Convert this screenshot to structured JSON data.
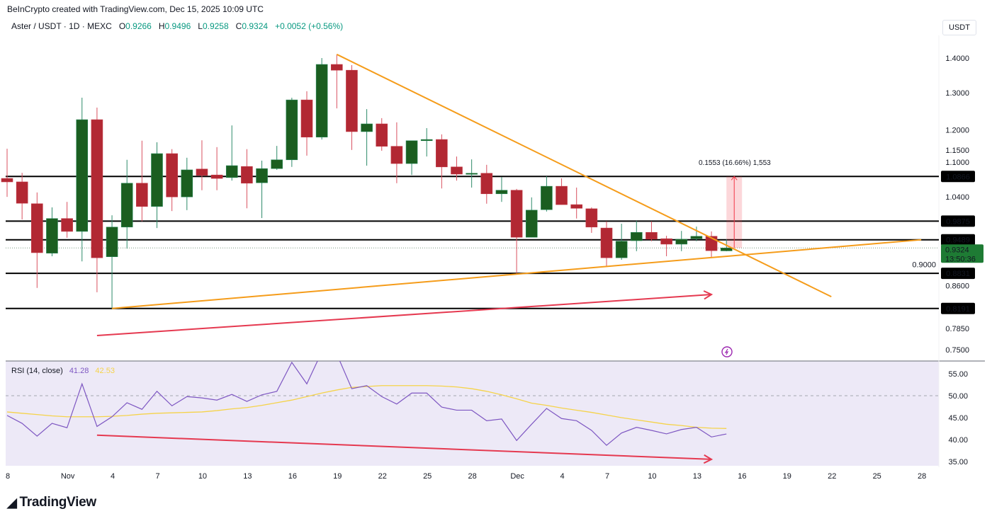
{
  "header": {
    "credit": "BeInCrypto created with TradingView.com, Dec 15, 2025 10:09 UTC",
    "symbol": "Aster / USDT · 1D · MEXC",
    "o_label": "O",
    "o": "0.9266",
    "h_label": "H",
    "h": "0.9496",
    "l_label": "L",
    "l": "0.9258",
    "c_label": "C",
    "c": "0.9324",
    "change": "+0.0052 (+0.56%)",
    "currency": "USDT"
  },
  "colors": {
    "up": "#1b5e20",
    "down": "#b22833",
    "up_wick": "#2e8b6a",
    "down_wick": "#d9505f",
    "trendline": "#f59c1a",
    "arrow": "#e53950",
    "rsi": "#7e57c2",
    "rsi_ma": "#f5d34a",
    "level": "#000000",
    "last_price": "#1e7b34"
  },
  "logo": {
    "text": "TradingView",
    "mark": "17"
  },
  "measure": {
    "label": "0.1553 (16.66%) 1,553",
    "from": 0.9324,
    "to": 1.0866,
    "date": "2025-12-15"
  },
  "chart_data": [
    {
      "type": "candlestick",
      "scale": "log",
      "ylim": [
        0.75,
        1.4
      ],
      "x_ticks": [
        {
          "date": "2025-10-28",
          "label": "8"
        },
        {
          "date": "2025-11-01",
          "label": "Nov"
        },
        {
          "date": "2025-11-04",
          "label": "4"
        },
        {
          "date": "2025-11-07",
          "label": "7"
        },
        {
          "date": "2025-11-10",
          "label": "10"
        },
        {
          "date": "2025-11-13",
          "label": "13"
        },
        {
          "date": "2025-11-16",
          "label": "16"
        },
        {
          "date": "2025-11-19",
          "label": "19"
        },
        {
          "date": "2025-11-22",
          "label": "22"
        },
        {
          "date": "2025-11-25",
          "label": "25"
        },
        {
          "date": "2025-11-28",
          "label": "28"
        },
        {
          "date": "2025-12-01",
          "label": "Dec"
        },
        {
          "date": "2025-12-04",
          "label": "4"
        },
        {
          "date": "2025-12-07",
          "label": "7"
        },
        {
          "date": "2025-12-10",
          "label": "10"
        },
        {
          "date": "2025-12-13",
          "label": "13"
        },
        {
          "date": "2025-12-16",
          "label": "16"
        },
        {
          "date": "2025-12-19",
          "label": "19"
        },
        {
          "date": "2025-12-22",
          "label": "22"
        },
        {
          "date": "2025-12-25",
          "label": "25"
        },
        {
          "date": "2025-12-28",
          "label": "28"
        }
      ],
      "y_ticks": [
        "1.4000",
        "1.3000",
        "1.2000",
        "1.1500",
        "1.1000",
        "1.0400",
        "0.9000",
        "0.8600",
        "0.7850",
        "0.7500"
      ],
      "levels": [
        "1.0866",
        "0.9875",
        "0.9489",
        "0.8831",
        "0.8191"
      ],
      "last_price": {
        "value": "0.9324",
        "countdown": "13:50:36"
      },
      "candles": [
        {
          "d": "2025-10-28",
          "o": 1.082,
          "h": 1.153,
          "l": 1.04,
          "c": 1.074
        },
        {
          "d": "2025-10-29",
          "o": 1.074,
          "h": 1.095,
          "l": 0.991,
          "c": 1.026
        },
        {
          "d": "2025-10-30",
          "o": 1.025,
          "h": 1.05,
          "l": 0.856,
          "c": 0.923
        },
        {
          "d": "2025-10-31",
          "o": 0.922,
          "h": 1.017,
          "l": 0.916,
          "c": 0.993
        },
        {
          "d": "2025-11-01",
          "o": 0.993,
          "h": 1.029,
          "l": 0.953,
          "c": 0.966
        },
        {
          "d": "2025-11-02",
          "o": 0.966,
          "h": 1.286,
          "l": 0.906,
          "c": 1.227
        },
        {
          "d": "2025-11-03",
          "o": 1.227,
          "h": 1.259,
          "l": 0.848,
          "c": 0.913
        },
        {
          "d": "2025-11-04",
          "o": 0.915,
          "h": 1.0,
          "l": 0.8191,
          "c": 0.975
        },
        {
          "d": "2025-11-05",
          "o": 0.975,
          "h": 1.126,
          "l": 0.931,
          "c": 1.071
        },
        {
          "d": "2025-11-06",
          "o": 1.071,
          "h": 1.173,
          "l": 0.987,
          "c": 1.019
        },
        {
          "d": "2025-11-07",
          "o": 1.019,
          "h": 1.169,
          "l": 0.973,
          "c": 1.141
        },
        {
          "d": "2025-11-08",
          "o": 1.141,
          "h": 1.152,
          "l": 1.009,
          "c": 1.04
        },
        {
          "d": "2025-11-09",
          "o": 1.04,
          "h": 1.131,
          "l": 1.011,
          "c": 1.102
        },
        {
          "d": "2025-11-10",
          "o": 1.104,
          "h": 1.174,
          "l": 1.055,
          "c": 1.089
        },
        {
          "d": "2025-11-11",
          "o": 1.09,
          "h": 1.157,
          "l": 1.055,
          "c": 1.082
        },
        {
          "d": "2025-11-12",
          "o": 1.084,
          "h": 1.212,
          "l": 1.077,
          "c": 1.112
        },
        {
          "d": "2025-11-13",
          "o": 1.11,
          "h": 1.152,
          "l": 1.015,
          "c": 1.071
        },
        {
          "d": "2025-11-14",
          "o": 1.072,
          "h": 1.124,
          "l": 0.994,
          "c": 1.105
        },
        {
          "d": "2025-11-15",
          "o": 1.105,
          "h": 1.16,
          "l": 1.102,
          "c": 1.126
        },
        {
          "d": "2025-11-16",
          "o": 1.126,
          "h": 1.286,
          "l": 1.109,
          "c": 1.28
        },
        {
          "d": "2025-11-17",
          "o": 1.28,
          "h": 1.304,
          "l": 1.136,
          "c": 1.182
        },
        {
          "d": "2025-11-18",
          "o": 1.182,
          "h": 1.4,
          "l": 1.176,
          "c": 1.381
        },
        {
          "d": "2025-11-19",
          "o": 1.381,
          "h": 1.411,
          "l": 1.257,
          "c": 1.364
        },
        {
          "d": "2025-11-20",
          "o": 1.364,
          "h": 1.379,
          "l": 1.15,
          "c": 1.196
        },
        {
          "d": "2025-11-21",
          "o": 1.196,
          "h": 1.255,
          "l": 1.112,
          "c": 1.216
        },
        {
          "d": "2025-11-22",
          "o": 1.216,
          "h": 1.231,
          "l": 1.148,
          "c": 1.159
        },
        {
          "d": "2025-11-23",
          "o": 1.159,
          "h": 1.22,
          "l": 1.071,
          "c": 1.117
        },
        {
          "d": "2025-11-24",
          "o": 1.117,
          "h": 1.173,
          "l": 1.09,
          "c": 1.173
        },
        {
          "d": "2025-11-25",
          "o": 1.173,
          "h": 1.205,
          "l": 1.134,
          "c": 1.176
        },
        {
          "d": "2025-11-26",
          "o": 1.176,
          "h": 1.189,
          "l": 1.059,
          "c": 1.109
        },
        {
          "d": "2025-11-27",
          "o": 1.109,
          "h": 1.134,
          "l": 1.077,
          "c": 1.092
        },
        {
          "d": "2025-11-28",
          "o": 1.092,
          "h": 1.127,
          "l": 1.061,
          "c": 1.094
        },
        {
          "d": "2025-11-29",
          "o": 1.094,
          "h": 1.114,
          "l": 1.025,
          "c": 1.047
        },
        {
          "d": "2025-11-30",
          "o": 1.047,
          "h": 1.085,
          "l": 1.029,
          "c": 1.055
        },
        {
          "d": "2025-12-01",
          "o": 1.055,
          "h": 1.058,
          "l": 0.8831,
          "c": 0.954
        },
        {
          "d": "2025-12-02",
          "o": 0.954,
          "h": 1.039,
          "l": 0.954,
          "c": 1.011
        },
        {
          "d": "2025-12-03",
          "o": 1.012,
          "h": 1.087,
          "l": 1.008,
          "c": 1.064
        },
        {
          "d": "2025-12-04",
          "o": 1.064,
          "h": 1.082,
          "l": 1.023,
          "c": 1.023
        },
        {
          "d": "2025-12-05",
          "o": 1.023,
          "h": 1.061,
          "l": 0.993,
          "c": 1.015
        },
        {
          "d": "2025-12-06",
          "o": 1.014,
          "h": 1.017,
          "l": 0.963,
          "c": 0.975
        },
        {
          "d": "2025-12-07",
          "o": 0.973,
          "h": 0.987,
          "l": 0.897,
          "c": 0.913
        },
        {
          "d": "2025-12-08",
          "o": 0.913,
          "h": 0.982,
          "l": 0.909,
          "c": 0.946
        },
        {
          "d": "2025-12-09",
          "o": 0.947,
          "h": 0.988,
          "l": 0.926,
          "c": 0.964
        },
        {
          "d": "2025-12-10",
          "o": 0.964,
          "h": 0.987,
          "l": 0.946,
          "c": 0.95
        },
        {
          "d": "2025-12-11",
          "o": 0.951,
          "h": 0.957,
          "l": 0.916,
          "c": 0.94
        },
        {
          "d": "2025-12-12",
          "o": 0.94,
          "h": 0.967,
          "l": 0.926,
          "c": 0.95
        },
        {
          "d": "2025-12-13",
          "o": 0.951,
          "h": 0.976,
          "l": 0.946,
          "c": 0.956
        },
        {
          "d": "2025-12-14",
          "o": 0.956,
          "h": 0.966,
          "l": 0.913,
          "c": 0.927
        },
        {
          "d": "2025-12-15",
          "o": 0.9266,
          "h": 0.9496,
          "l": 0.9258,
          "c": 0.9324
        }
      ],
      "trendlines": [
        {
          "from": {
            "d": "2025-11-19",
            "p": 1.411
          },
          "to": {
            "d": "2025-12-22",
            "p": 0.84
          }
        },
        {
          "from": {
            "d": "2025-11-04",
            "p": 0.8191
          },
          "to": {
            "d": "2025-12-28",
            "p": 0.9489
          }
        }
      ],
      "arrow": {
        "from": {
          "d": "2025-11-03",
          "p": 0.773
        },
        "to": {
          "d": "2025-12-14",
          "p": 0.844
        }
      }
    },
    {
      "type": "line",
      "title": "RSI (14, close)",
      "rsi_value": "41.28",
      "ma_value": "42.53",
      "ylim": [
        34,
        58
      ],
      "y_ticks": [
        "55.00",
        "50.00",
        "45.00",
        "40.00",
        "35.00"
      ],
      "midline": 50,
      "rsi": [
        45.5,
        43.7,
        40.8,
        43.7,
        42.7,
        52.7,
        43.0,
        45.2,
        48.4,
        46.9,
        51.0,
        47.7,
        49.8,
        49.5,
        49.0,
        50.3,
        48.7,
        50.2,
        51.0,
        57.6,
        52.7,
        60.0,
        59.5,
        51.6,
        52.3,
        49.8,
        48.1,
        50.6,
        50.6,
        47.4,
        46.7,
        46.7,
        44.3,
        44.7,
        39.8,
        43.5,
        47.1,
        44.8,
        44.3,
        42.1,
        38.7,
        41.5,
        42.8,
        42.1,
        41.3,
        42.3,
        42.8,
        40.6,
        41.28
      ],
      "rsi_ma": [
        46.3,
        46.0,
        45.7,
        45.4,
        45.2,
        45.2,
        45.2,
        45.3,
        45.5,
        45.8,
        46.0,
        46.1,
        46.2,
        46.3,
        46.6,
        47.0,
        47.3,
        47.8,
        48.4,
        49.0,
        49.8,
        50.6,
        51.3,
        51.9,
        52.1,
        52.3,
        52.3,
        52.3,
        52.3,
        52.2,
        52.0,
        51.6,
        51.0,
        50.2,
        49.3,
        48.3,
        47.8,
        47.2,
        46.7,
        46.2,
        45.6,
        45.0,
        44.5,
        44.0,
        43.5,
        43.2,
        42.8,
        42.6,
        42.53
      ],
      "arrow": {
        "from": {
          "d": "2025-11-03",
          "v": 41.0
        },
        "to": {
          "d": "2025-12-14",
          "v": 35.5
        }
      }
    }
  ]
}
